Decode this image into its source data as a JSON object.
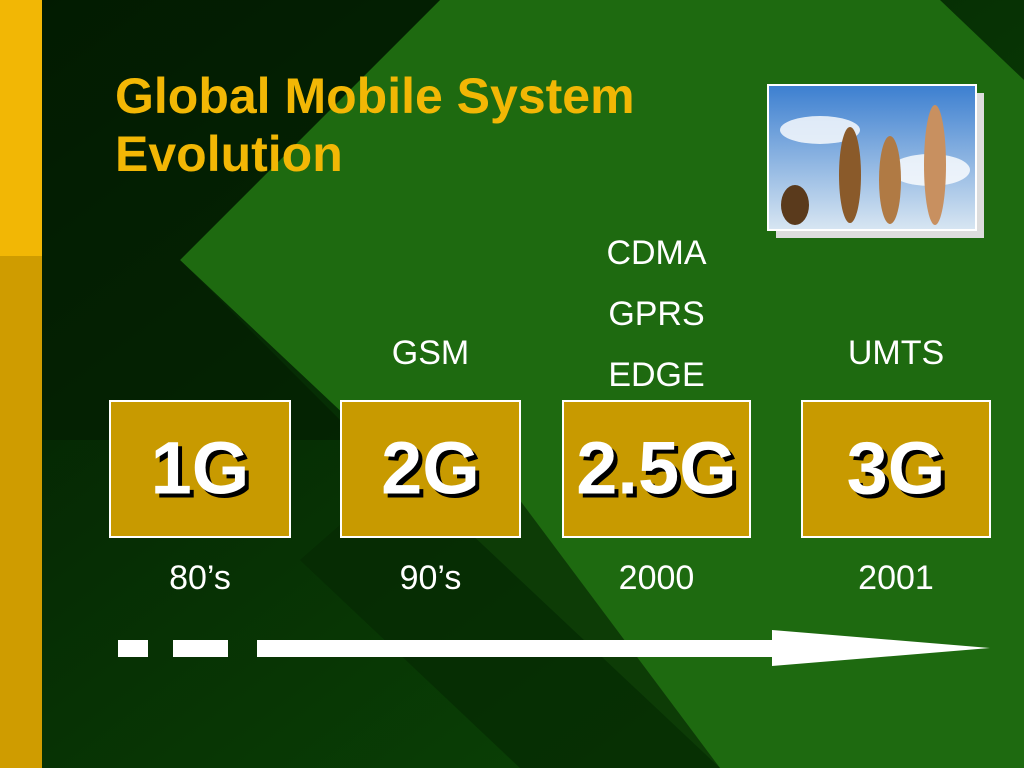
{
  "title": [
    "Global Mobile System",
    "Evolution"
  ],
  "stages": [
    {
      "label": "1G",
      "period": "80’s",
      "technologies": []
    },
    {
      "label": "2G",
      "period": "90’s",
      "technologies": [
        "GSM"
      ]
    },
    {
      "label": "2.5G",
      "period": "2000",
      "technologies": [
        "CDMA",
        "GPRS",
        "EDGE"
      ]
    },
    {
      "label": "3G",
      "period": "2001",
      "technologies": [
        "UMTS"
      ]
    }
  ]
}
